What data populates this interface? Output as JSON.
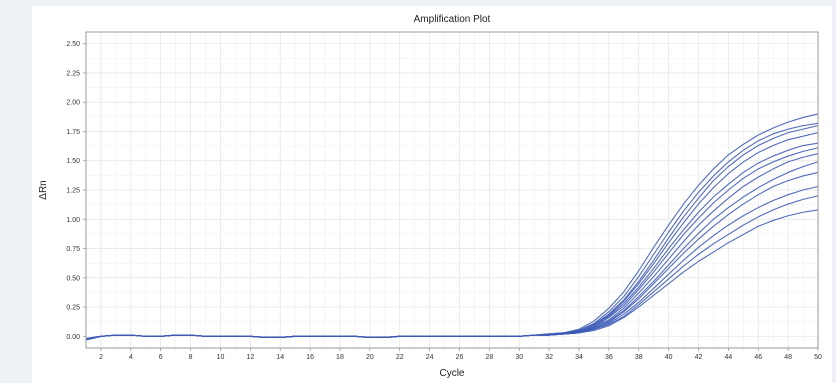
{
  "chart_data": {
    "type": "line",
    "title": "Amplification Plot",
    "xlabel": "Cycle",
    "ylabel": "ΔRn",
    "xlim": [
      1,
      50
    ],
    "ylim": [
      -0.1,
      2.6
    ],
    "grid": true,
    "legend": "none",
    "x_ticks": [
      2,
      4,
      6,
      8,
      10,
      12,
      14,
      16,
      18,
      20,
      22,
      24,
      26,
      28,
      30,
      32,
      34,
      36,
      38,
      40,
      42,
      44,
      46,
      48,
      50
    ],
    "y_ticks": [
      "0.00",
      "0.25",
      "0.50",
      "0.75",
      "1.00",
      "1.25",
      "1.50",
      "1.75",
      "2.00",
      "2.25",
      "2.50"
    ],
    "line_color": "#3d5bb5",
    "x": [
      1,
      2,
      3,
      4,
      5,
      6,
      7,
      8,
      9,
      10,
      11,
      12,
      13,
      14,
      15,
      16,
      17,
      18,
      19,
      20,
      21,
      22,
      23,
      24,
      25,
      26,
      27,
      28,
      29,
      30,
      31,
      32,
      33,
      34,
      35,
      36,
      37,
      38,
      39,
      40,
      41,
      42,
      43,
      44,
      45,
      46,
      47,
      48,
      49,
      50
    ],
    "series": [
      {
        "values": [
          -0.02,
          0.0,
          0.01,
          0.01,
          0.0,
          0.0,
          0.01,
          0.01,
          0.0,
          0.0,
          0.0,
          0.0,
          -0.01,
          -0.01,
          0.0,
          0.0,
          0.0,
          0.0,
          0.0,
          -0.01,
          -0.01,
          0.0,
          0.0,
          0.0,
          0.0,
          0.0,
          0.0,
          0.0,
          0.0,
          0.0,
          0.01,
          0.02,
          0.03,
          0.06,
          0.13,
          0.24,
          0.38,
          0.56,
          0.76,
          0.95,
          1.13,
          1.29,
          1.43,
          1.55,
          1.64,
          1.72,
          1.78,
          1.83,
          1.87,
          1.9
        ]
      },
      {
        "values": [
          -0.03,
          0.0,
          0.01,
          0.01,
          0.0,
          0.0,
          0.01,
          0.01,
          0.0,
          0.0,
          0.0,
          0.0,
          -0.01,
          -0.01,
          0.0,
          0.0,
          0.0,
          0.0,
          0.0,
          -0.01,
          -0.01,
          0.0,
          0.0,
          0.0,
          0.0,
          0.0,
          0.0,
          0.0,
          0.0,
          0.0,
          0.01,
          0.02,
          0.03,
          0.05,
          0.11,
          0.21,
          0.34,
          0.51,
          0.7,
          0.89,
          1.07,
          1.23,
          1.37,
          1.49,
          1.59,
          1.67,
          1.73,
          1.77,
          1.8,
          1.82
        ]
      },
      {
        "values": [
          -0.02,
          0.0,
          0.01,
          0.01,
          0.0,
          0.0,
          0.01,
          0.01,
          0.0,
          0.0,
          0.0,
          0.0,
          -0.01,
          -0.01,
          0.0,
          0.0,
          0.0,
          0.0,
          0.0,
          -0.01,
          -0.01,
          0.0,
          0.0,
          0.0,
          0.0,
          0.0,
          0.0,
          0.0,
          0.0,
          0.0,
          0.01,
          0.02,
          0.03,
          0.05,
          0.1,
          0.19,
          0.31,
          0.47,
          0.65,
          0.84,
          1.02,
          1.18,
          1.33,
          1.45,
          1.55,
          1.63,
          1.69,
          1.74,
          1.77,
          1.8
        ]
      },
      {
        "values": [
          -0.03,
          0.0,
          0.01,
          0.01,
          0.0,
          0.0,
          0.01,
          0.01,
          0.0,
          0.0,
          0.0,
          0.0,
          -0.01,
          -0.01,
          0.0,
          0.0,
          0.0,
          0.0,
          0.0,
          -0.01,
          -0.01,
          0.0,
          0.0,
          0.0,
          0.0,
          0.0,
          0.0,
          0.0,
          0.0,
          0.0,
          0.01,
          0.01,
          0.02,
          0.05,
          0.1,
          0.18,
          0.3,
          0.45,
          0.62,
          0.8,
          0.97,
          1.13,
          1.27,
          1.39,
          1.49,
          1.57,
          1.63,
          1.68,
          1.71,
          1.74
        ]
      },
      {
        "values": [
          -0.02,
          0.0,
          0.01,
          0.01,
          0.0,
          0.0,
          0.01,
          0.01,
          0.0,
          0.0,
          0.0,
          0.0,
          -0.01,
          -0.01,
          0.0,
          0.0,
          0.0,
          0.0,
          0.0,
          -0.01,
          -0.01,
          0.0,
          0.0,
          0.0,
          0.0,
          0.0,
          0.0,
          0.0,
          0.0,
          0.0,
          0.01,
          0.01,
          0.02,
          0.04,
          0.09,
          0.17,
          0.28,
          0.42,
          0.58,
          0.75,
          0.91,
          1.06,
          1.19,
          1.3,
          1.4,
          1.48,
          1.54,
          1.59,
          1.63,
          1.65
        ]
      },
      {
        "values": [
          -0.03,
          0.0,
          0.01,
          0.01,
          0.0,
          0.0,
          0.01,
          0.01,
          0.0,
          0.0,
          0.0,
          0.0,
          -0.01,
          -0.01,
          0.0,
          0.0,
          0.0,
          0.0,
          0.0,
          -0.01,
          -0.01,
          0.0,
          0.0,
          0.0,
          0.0,
          0.0,
          0.0,
          0.0,
          0.0,
          0.0,
          0.01,
          0.01,
          0.02,
          0.04,
          0.08,
          0.16,
          0.26,
          0.4,
          0.55,
          0.71,
          0.87,
          1.01,
          1.14,
          1.25,
          1.35,
          1.43,
          1.49,
          1.54,
          1.58,
          1.61
        ]
      },
      {
        "values": [
          -0.02,
          0.0,
          0.01,
          0.01,
          0.0,
          0.0,
          0.01,
          0.01,
          0.0,
          0.0,
          0.0,
          0.0,
          -0.01,
          -0.01,
          0.0,
          0.0,
          0.0,
          0.0,
          0.0,
          -0.01,
          -0.01,
          0.0,
          0.0,
          0.0,
          0.0,
          0.0,
          0.0,
          0.0,
          0.0,
          0.0,
          0.01,
          0.01,
          0.02,
          0.04,
          0.08,
          0.14,
          0.24,
          0.37,
          0.51,
          0.66,
          0.81,
          0.95,
          1.07,
          1.18,
          1.28,
          1.36,
          1.43,
          1.49,
          1.53,
          1.56
        ]
      },
      {
        "values": [
          -0.03,
          0.0,
          0.01,
          0.01,
          0.0,
          0.0,
          0.01,
          0.01,
          0.0,
          0.0,
          0.0,
          0.0,
          -0.01,
          -0.01,
          0.0,
          0.0,
          0.0,
          0.0,
          0.0,
          -0.01,
          -0.01,
          0.0,
          0.0,
          0.0,
          0.0,
          0.0,
          0.0,
          0.0,
          0.0,
          0.0,
          0.01,
          0.01,
          0.02,
          0.03,
          0.07,
          0.13,
          0.22,
          0.34,
          0.47,
          0.61,
          0.75,
          0.88,
          1.0,
          1.1,
          1.19,
          1.27,
          1.34,
          1.4,
          1.45,
          1.49
        ]
      },
      {
        "values": [
          -0.02,
          0.0,
          0.01,
          0.01,
          0.0,
          0.0,
          0.01,
          0.01,
          0.0,
          0.0,
          0.0,
          0.0,
          -0.01,
          -0.01,
          0.0,
          0.0,
          0.0,
          0.0,
          0.0,
          -0.01,
          -0.01,
          0.0,
          0.0,
          0.0,
          0.0,
          0.0,
          0.0,
          0.0,
          0.0,
          0.0,
          0.01,
          0.01,
          0.02,
          0.03,
          0.07,
          0.12,
          0.21,
          0.32,
          0.45,
          0.58,
          0.71,
          0.83,
          0.94,
          1.04,
          1.13,
          1.21,
          1.28,
          1.33,
          1.37,
          1.4
        ]
      },
      {
        "values": [
          -0.03,
          0.0,
          0.01,
          0.01,
          0.0,
          0.0,
          0.01,
          0.01,
          0.0,
          0.0,
          0.0,
          0.0,
          -0.01,
          -0.01,
          0.0,
          0.0,
          0.0,
          0.0,
          0.0,
          -0.01,
          -0.01,
          0.0,
          0.0,
          0.0,
          0.0,
          0.0,
          0.0,
          0.0,
          0.0,
          0.0,
          0.01,
          0.01,
          0.02,
          0.03,
          0.06,
          0.11,
          0.19,
          0.29,
          0.41,
          0.53,
          0.65,
          0.76,
          0.86,
          0.95,
          1.03,
          1.1,
          1.16,
          1.21,
          1.25,
          1.28
        ]
      },
      {
        "values": [
          -0.02,
          0.0,
          0.01,
          0.01,
          0.0,
          0.0,
          0.01,
          0.01,
          0.0,
          0.0,
          0.0,
          0.0,
          -0.01,
          -0.01,
          0.0,
          0.0,
          0.0,
          0.0,
          0.0,
          -0.01,
          -0.01,
          0.0,
          0.0,
          0.0,
          0.0,
          0.0,
          0.0,
          0.0,
          0.0,
          0.0,
          0.01,
          0.01,
          0.02,
          0.03,
          0.06,
          0.1,
          0.17,
          0.27,
          0.38,
          0.49,
          0.6,
          0.7,
          0.79,
          0.87,
          0.95,
          1.02,
          1.08,
          1.13,
          1.17,
          1.2
        ]
      },
      {
        "values": [
          -0.03,
          0.0,
          0.01,
          0.01,
          0.0,
          0.0,
          0.01,
          0.01,
          0.0,
          0.0,
          0.0,
          0.0,
          -0.01,
          -0.01,
          0.0,
          0.0,
          0.0,
          0.0,
          0.0,
          -0.01,
          -0.01,
          0.0,
          0.0,
          0.0,
          0.0,
          0.0,
          0.0,
          0.0,
          0.0,
          0.0,
          0.01,
          0.01,
          0.02,
          0.03,
          0.05,
          0.09,
          0.16,
          0.25,
          0.35,
          0.45,
          0.55,
          0.64,
          0.72,
          0.8,
          0.87,
          0.94,
          0.99,
          1.03,
          1.06,
          1.08
        ]
      }
    ]
  }
}
